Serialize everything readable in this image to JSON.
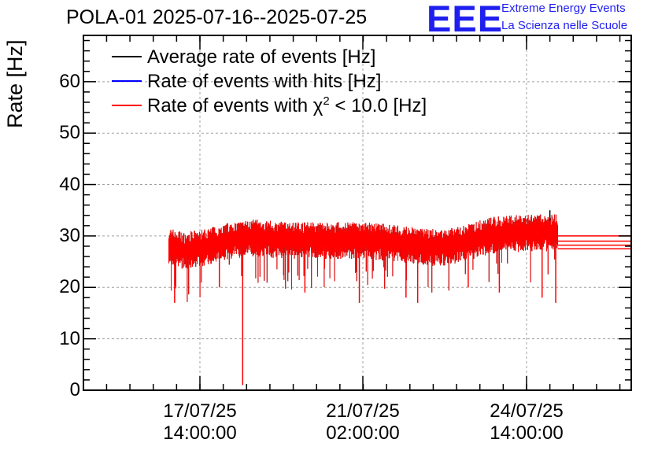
{
  "title": "POLA-01 2025-07-16--2025-07-25",
  "logo": {
    "text": "EEE",
    "line1": "Extreme Energy Events",
    "line2": "La Scienza nelle Scuole",
    "color": "#1f1ff0"
  },
  "chart_data": {
    "type": "line",
    "ylabel": "Rate [Hz]",
    "ylim": [
      0,
      69
    ],
    "yticks": [
      0,
      10,
      20,
      30,
      40,
      50,
      60
    ],
    "grid": true,
    "legend_position": "top-left",
    "xtick_labels": [
      {
        "date": "17/07/25",
        "time": "14:00:00"
      },
      {
        "date": "21/07/25",
        "time": "02:00:00"
      },
      {
        "date": "24/07/25",
        "time": "14:00:00"
      }
    ],
    "series": [
      {
        "name": "Average rate of events [Hz]",
        "color": "#000000",
        "values_note_level": 30
      },
      {
        "name": "Rate of events with hits [Hz]",
        "color": "#0000ff"
      },
      {
        "name_prefix": "Rate of events with ",
        "name_symbol": "χ",
        "name_sup": "2",
        "name_suffix": " < 10.0 [Hz]",
        "color": "#ff0000"
      }
    ],
    "profile": [
      {
        "x": "16/07/25 22:00",
        "y": 28.5
      },
      {
        "x": "17/07/25 06:00",
        "y": 27.5
      },
      {
        "x": "17/07/25 14:00",
        "y": 28.0
      },
      {
        "x": "18/07/25 06:00",
        "y": 29.5
      },
      {
        "x": "18/07/25 18:00",
        "y": 30.0
      },
      {
        "x": "19/07/25 12:00",
        "y": 29.5
      },
      {
        "x": "20/07/25 12:00",
        "y": 29.5
      },
      {
        "x": "21/07/25 02:00",
        "y": 29.5
      },
      {
        "x": "21/07/25 18:00",
        "y": 29.0
      },
      {
        "x": "22/07/25 18:00",
        "y": 28.0
      },
      {
        "x": "23/07/25 06:00",
        "y": 29.0
      },
      {
        "x": "23/07/25 20:00",
        "y": 30.5
      },
      {
        "x": "24/07/25 14:00",
        "y": 31.0
      },
      {
        "x": "25/07/25 06:00",
        "y": 31.0
      }
    ],
    "dips": [
      {
        "x": "17/07/25 01:00",
        "y": 17
      },
      {
        "x": "18/07/25 00:00",
        "y": 20
      },
      {
        "x": "18/07/25 12:00",
        "y": 1
      },
      {
        "x": "19/07/25 20:00",
        "y": 19
      },
      {
        "x": "21/07/25 00:00",
        "y": 17
      },
      {
        "x": "22/07/25 00:00",
        "y": 18
      },
      {
        "x": "22/07/25 06:00",
        "y": 17
      },
      {
        "x": "23/07/25 08:00",
        "y": 20
      },
      {
        "x": "24/07/25 00:00",
        "y": 19
      },
      {
        "x": "24/07/25 22:00",
        "y": 18
      },
      {
        "x": "25/07/25 05:00",
        "y": 17
      }
    ],
    "spike": {
      "x": "25/07/25 02:00",
      "y": 35
    },
    "flat_tail": [
      27.5,
      28.2,
      29.0,
      30.0
    ]
  }
}
